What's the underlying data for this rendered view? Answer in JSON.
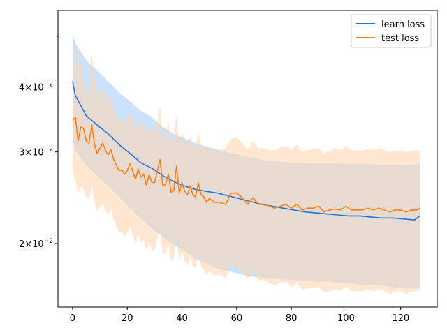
{
  "chart_data": {
    "type": "line",
    "title": "",
    "xlabel": "",
    "ylabel": "",
    "yscale": "log",
    "xlim": [
      -5.35,
      133.35
    ],
    "ylim": [
      0.0151,
      0.0561
    ],
    "grid": false,
    "legend_position": "top-right",
    "xticks": [
      0,
      20,
      40,
      60,
      80,
      100,
      120
    ],
    "xtick_labels": [
      "0",
      "20",
      "40",
      "60",
      "80",
      "100",
      "120"
    ],
    "yticks": [
      0.02,
      0.03,
      0.04
    ],
    "ytick_labels": [
      {
        "mantissa": "2",
        "base": "10",
        "exponent": "−2"
      },
      {
        "mantissa": "3",
        "base": "10",
        "exponent": "−2"
      },
      {
        "mantissa": "4",
        "base": "10",
        "exponent": "−2"
      }
    ],
    "minor_ytick": 0.05,
    "series": [
      {
        "name": "learn loss",
        "color": "#1f77e4",
        "band_color": "#a8cffb",
        "x": [
          0,
          1,
          5,
          9,
          13,
          17,
          21,
          25,
          29,
          33,
          37,
          41,
          45,
          49,
          53,
          57,
          61,
          65,
          69,
          73,
          77,
          81,
          85,
          89,
          93,
          97,
          101,
          105,
          109,
          113,
          117,
          121,
          125,
          127
        ],
        "mean": [
          0.041,
          0.0385,
          0.0352,
          0.0338,
          0.0325,
          0.031,
          0.0298,
          0.0286,
          0.0279,
          0.027,
          0.0263,
          0.0258,
          0.0254,
          0.0252,
          0.025,
          0.0247,
          0.0244,
          0.0241,
          0.0238,
          0.0236,
          0.0234,
          0.0232,
          0.023,
          0.0229,
          0.0228,
          0.0227,
          0.0226,
          0.0226,
          0.0225,
          0.0224,
          0.0224,
          0.0223,
          0.0222,
          0.0226
        ],
        "upper": [
          0.051,
          0.0485,
          0.045,
          0.043,
          0.041,
          0.039,
          0.0375,
          0.036,
          0.035,
          0.0335,
          0.0325,
          0.0318,
          0.0312,
          0.0307,
          0.0303,
          0.0299,
          0.0296,
          0.0293,
          0.029,
          0.0288,
          0.0287,
          0.0286,
          0.0286,
          0.0285,
          0.0285,
          0.0285,
          0.0284,
          0.0284,
          0.0284,
          0.0283,
          0.0283,
          0.0283,
          0.0284,
          0.0285
        ],
        "lower": [
          0.0315,
          0.0302,
          0.0283,
          0.027,
          0.0258,
          0.0246,
          0.0234,
          0.0223,
          0.0214,
          0.0206,
          0.0199,
          0.0193,
          0.0187,
          0.0183,
          0.0179,
          0.0177,
          0.0175,
          0.0173,
          0.0172,
          0.0171,
          0.0171,
          0.017,
          0.017,
          0.0169,
          0.0169,
          0.0168,
          0.0168,
          0.0167,
          0.0166,
          0.0166,
          0.0165,
          0.0164,
          0.0164,
          0.0165
        ]
      },
      {
        "name": "test loss",
        "color": "#ff7f0e",
        "band_color": "#ffd3ab",
        "x": [
          0,
          1,
          2,
          3,
          4,
          5,
          6,
          7,
          8,
          9,
          10,
          11,
          12,
          13,
          14,
          15,
          16,
          17,
          18,
          19,
          20,
          21,
          22,
          23,
          24,
          25,
          26,
          27,
          28,
          29,
          30,
          31,
          32,
          33,
          34,
          35,
          36,
          37,
          38,
          39,
          40,
          41,
          42,
          43,
          44,
          45,
          46,
          47,
          48,
          49,
          50,
          52,
          54,
          56,
          58,
          60,
          62,
          64,
          66,
          68,
          70,
          72,
          74,
          76,
          78,
          80,
          82,
          84,
          86,
          88,
          90,
          92,
          94,
          96,
          98,
          100,
          102,
          104,
          106,
          108,
          110,
          112,
          114,
          116,
          118,
          120,
          122,
          124,
          126,
          127
        ],
        "mean": [
          0.0345,
          0.035,
          0.0315,
          0.0335,
          0.0333,
          0.0315,
          0.0312,
          0.0338,
          0.031,
          0.0298,
          0.0305,
          0.0312,
          0.0302,
          0.0296,
          0.0303,
          0.029,
          0.0283,
          0.0276,
          0.0277,
          0.0272,
          0.0276,
          0.0285,
          0.0275,
          0.0266,
          0.0278,
          0.0268,
          0.0272,
          0.0259,
          0.0271,
          0.0262,
          0.0262,
          0.0276,
          0.029,
          0.0258,
          0.026,
          0.0272,
          0.0251,
          0.0253,
          0.0282,
          0.025,
          0.0262,
          0.0252,
          0.0248,
          0.0258,
          0.0248,
          0.0246,
          0.0262,
          0.0248,
          0.0246,
          0.024,
          0.0244,
          0.024,
          0.024,
          0.0238,
          0.025,
          0.025,
          0.0245,
          0.0238,
          0.0245,
          0.0238,
          0.0238,
          0.0236,
          0.0234,
          0.0236,
          0.0238,
          0.0234,
          0.0238,
          0.0232,
          0.0234,
          0.0234,
          0.0236,
          0.023,
          0.0232,
          0.0233,
          0.0232,
          0.0236,
          0.0232,
          0.0232,
          0.0232,
          0.0234,
          0.0232,
          0.0234,
          0.0232,
          0.023,
          0.0232,
          0.0232,
          0.023,
          0.0232,
          0.0232,
          0.0234
        ],
        "upper": [
          0.0425,
          0.0485,
          0.043,
          0.046,
          0.0415,
          0.0395,
          0.0375,
          0.0465,
          0.042,
          0.0385,
          0.0395,
          0.0405,
          0.0385,
          0.0375,
          0.039,
          0.0365,
          0.0355,
          0.0345,
          0.035,
          0.0342,
          0.0348,
          0.036,
          0.0345,
          0.0335,
          0.0348,
          0.0335,
          0.034,
          0.0325,
          0.034,
          0.0328,
          0.0328,
          0.0345,
          0.0368,
          0.032,
          0.0325,
          0.0342,
          0.0315,
          0.0316,
          0.0355,
          0.0312,
          0.0328,
          0.0315,
          0.031,
          0.0322,
          0.031,
          0.0306,
          0.0328,
          0.031,
          0.0306,
          0.0304,
          0.0305,
          0.0302,
          0.0303,
          0.0305,
          0.0318,
          0.032,
          0.0312,
          0.0304,
          0.0315,
          0.0305,
          0.0305,
          0.0302,
          0.0302,
          0.0306,
          0.0308,
          0.0302,
          0.031,
          0.03,
          0.0302,
          0.0304,
          0.0305,
          0.0298,
          0.0302,
          0.0305,
          0.0302,
          0.0308,
          0.0302,
          0.0302,
          0.0302,
          0.0304,
          0.0302,
          0.0305,
          0.0302,
          0.03,
          0.0302,
          0.0302,
          0.03,
          0.0302,
          0.0302,
          0.0302
        ],
        "lower": [
          0.0275,
          0.0265,
          0.025,
          0.0258,
          0.0255,
          0.0245,
          0.0243,
          0.0258,
          0.0241,
          0.023,
          0.0236,
          0.0238,
          0.0232,
          0.0227,
          0.0232,
          0.0222,
          0.0216,
          0.021,
          0.021,
          0.0206,
          0.0209,
          0.0216,
          0.0207,
          0.02,
          0.0209,
          0.0201,
          0.0203,
          0.0193,
          0.0202,
          0.0195,
          0.0194,
          0.0205,
          0.0214,
          0.0191,
          0.0192,
          0.02,
          0.0185,
          0.0186,
          0.0207,
          0.0184,
          0.0193,
          0.0185,
          0.0181,
          0.0189,
          0.0181,
          0.0179,
          0.0191,
          0.018,
          0.0178,
          0.0174,
          0.0177,
          0.0174,
          0.0174,
          0.0172,
          0.0181,
          0.0181,
          0.0177,
          0.0171,
          0.0176,
          0.017,
          0.017,
          0.0168,
          0.0166,
          0.0168,
          0.0169,
          0.0165,
          0.0168,
          0.0163,
          0.0164,
          0.0164,
          0.0165,
          0.0161,
          0.0162,
          0.0163,
          0.0162,
          0.0165,
          0.0162,
          0.0162,
          0.0162,
          0.0163,
          0.0162,
          0.0163,
          0.0162,
          0.016,
          0.0162,
          0.0162,
          0.016,
          0.0162,
          0.0162,
          0.0163
        ]
      }
    ]
  }
}
